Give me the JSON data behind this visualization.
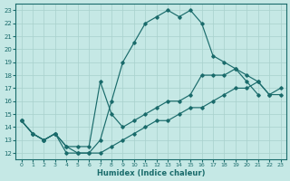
{
  "bg_color": "#c5e8e5",
  "grid_color": "#a8d0cc",
  "line_color": "#1a6b6b",
  "xlabel": "Humidex (Indice chaleur)",
  "xlim": [
    -0.5,
    23.5
  ],
  "ylim": [
    11.5,
    23.5
  ],
  "yticks": [
    12,
    13,
    14,
    15,
    16,
    17,
    18,
    19,
    20,
    21,
    22,
    23
  ],
  "xticks": [
    0,
    1,
    2,
    3,
    4,
    5,
    6,
    7,
    8,
    9,
    10,
    11,
    12,
    13,
    14,
    15,
    16,
    17,
    18,
    19,
    20,
    21,
    22,
    23
  ],
  "series1_x": [
    0,
    1,
    2,
    3,
    4,
    5,
    6,
    7,
    8,
    9,
    10,
    11,
    12,
    13,
    14,
    15,
    16,
    17,
    18,
    19,
    20,
    21
  ],
  "series1_y": [
    14.5,
    13.5,
    13.0,
    13.5,
    12.0,
    12.0,
    12.0,
    13.0,
    16.0,
    19.0,
    20.5,
    22.0,
    22.5,
    23.0,
    22.5,
    23.0,
    22.0,
    19.5,
    19.0,
    18.5,
    17.5,
    16.5
  ],
  "series2_x": [
    0,
    1,
    2,
    3,
    4,
    5,
    6,
    7,
    8,
    9,
    10,
    11,
    12,
    13,
    14,
    15,
    16,
    17,
    18,
    19,
    20,
    21,
    22,
    23
  ],
  "series2_y": [
    14.5,
    13.5,
    13.0,
    13.5,
    12.5,
    12.5,
    12.5,
    17.5,
    15.0,
    14.0,
    14.5,
    15.0,
    15.5,
    16.0,
    16.0,
    16.5,
    18.0,
    18.0,
    18.0,
    18.5,
    18.0,
    17.5,
    16.5,
    17.0
  ],
  "series3_x": [
    0,
    1,
    2,
    3,
    4,
    5,
    6,
    7,
    8,
    9,
    10,
    11,
    12,
    13,
    14,
    15,
    16,
    17,
    18,
    19,
    20,
    21,
    22,
    23
  ],
  "series3_y": [
    14.5,
    13.5,
    13.0,
    13.5,
    12.5,
    12.0,
    12.0,
    12.0,
    12.5,
    13.0,
    13.5,
    14.0,
    14.5,
    14.5,
    15.0,
    15.5,
    15.5,
    16.0,
    16.5,
    17.0,
    17.0,
    17.5,
    16.5,
    16.5
  ]
}
